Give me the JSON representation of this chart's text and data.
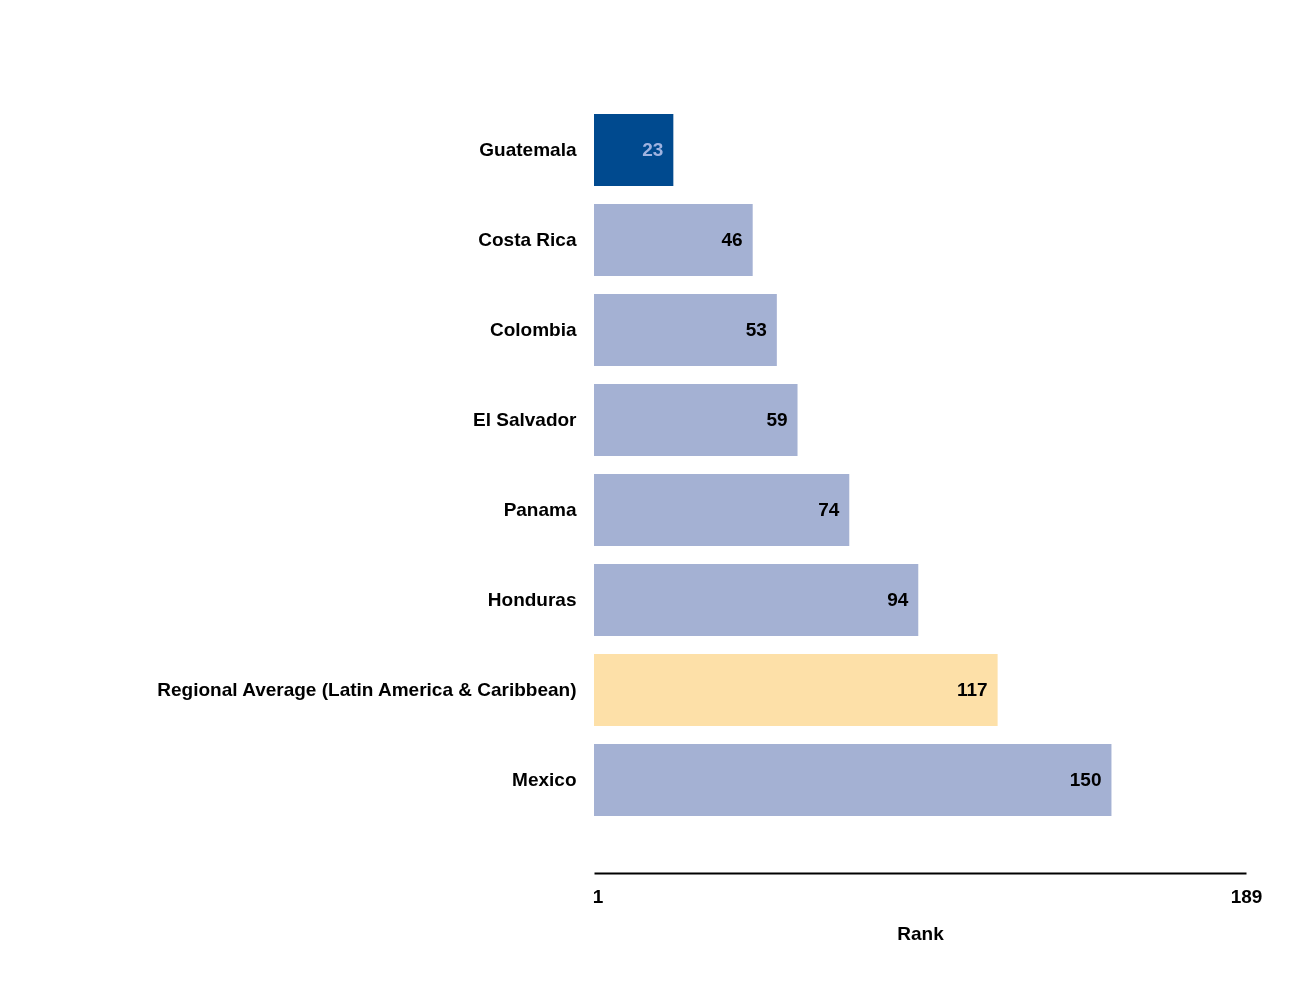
{
  "chart_data": {
    "type": "bar",
    "orientation": "horizontal",
    "xlabel": "Rank",
    "categories": [
      "Guatemala",
      "Costa Rica",
      "Colombia",
      "El Salvador",
      "Panama",
      "Honduras",
      "Regional Average (Latin America & Caribbean)",
      "Mexico"
    ],
    "values": [
      23,
      46,
      53,
      59,
      74,
      94,
      117,
      150
    ],
    "colors": [
      "#004a8f",
      "#a4b1d3",
      "#a4b1d3",
      "#a4b1d3",
      "#a4b1d3",
      "#a4b1d3",
      "#fde0a8",
      "#a4b1d3"
    ],
    "xlim": [
      0,
      189
    ],
    "xticks": [
      1,
      189
    ],
    "data_labels": true
  }
}
